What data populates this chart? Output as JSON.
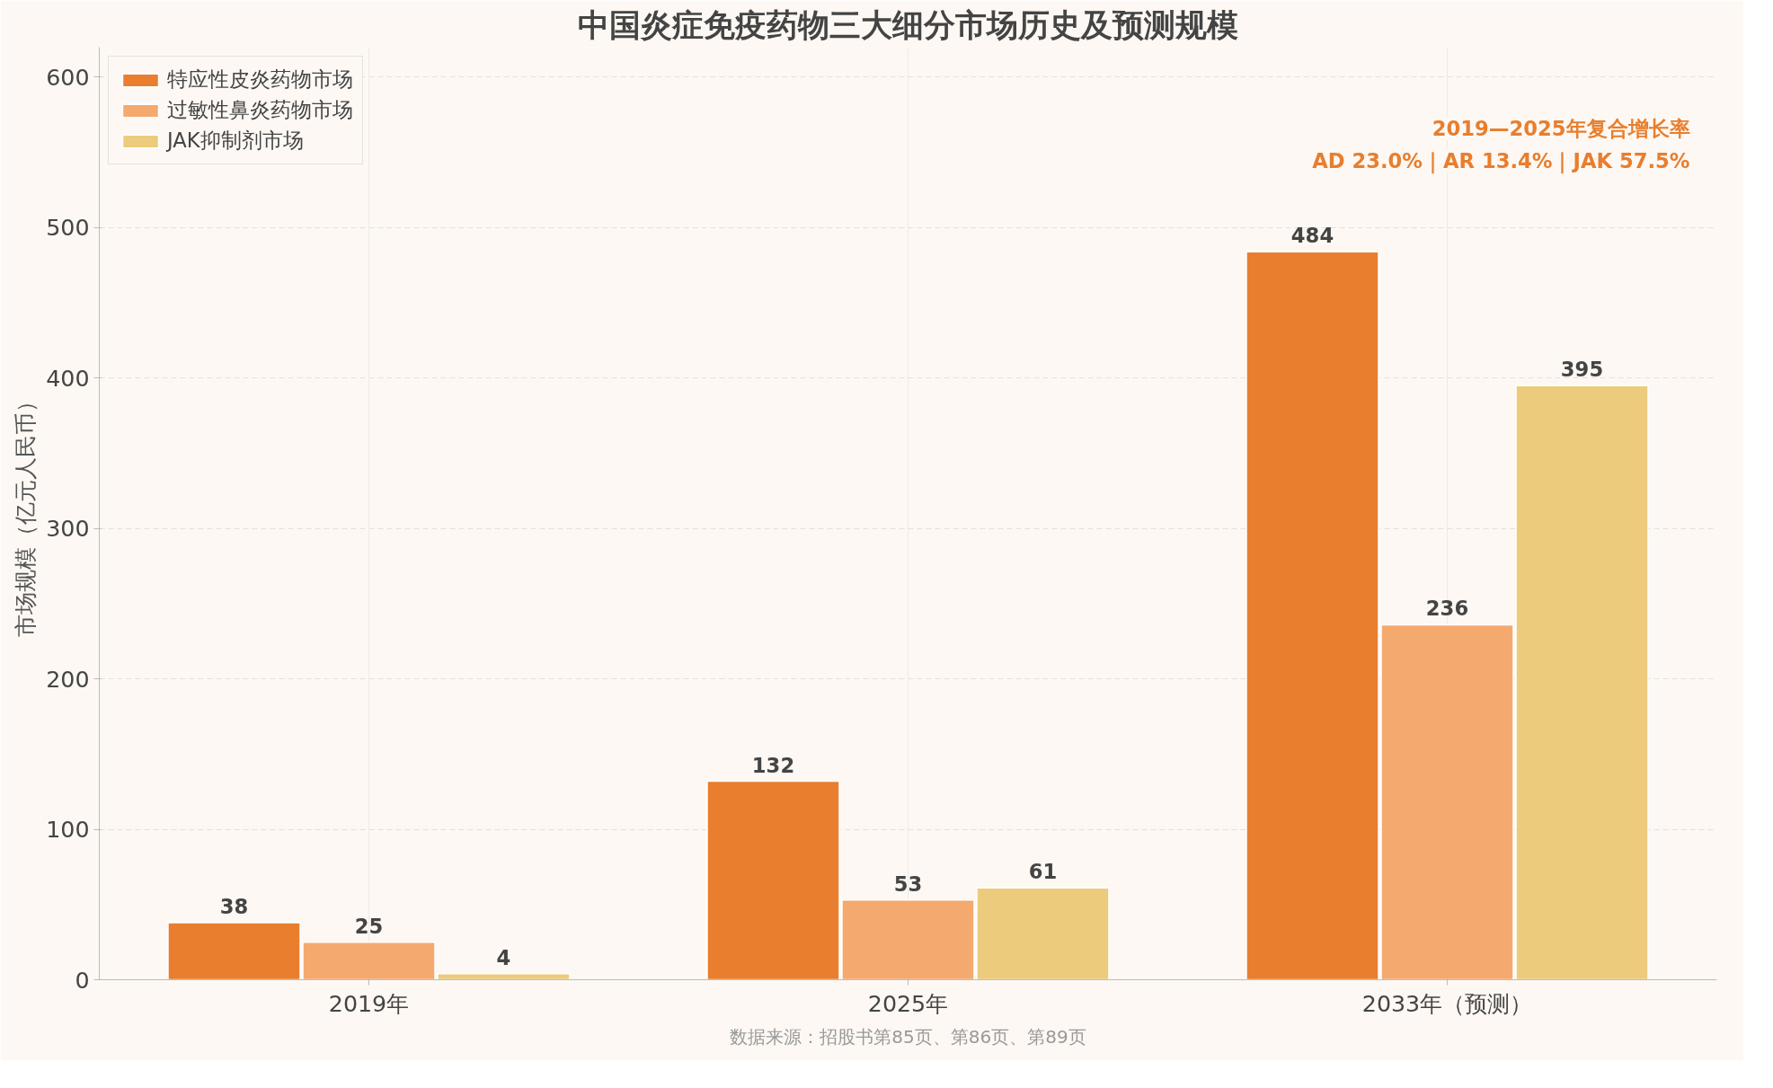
{
  "chart_data": {
    "type": "bar",
    "title": "中国炎症免疫药物三大细分市场历史及预测规模",
    "ylabel": "市场规模（亿元人民币）",
    "categories": [
      "2019年",
      "2025年",
      "2033年（预测）"
    ],
    "series": [
      {
        "name": "特应性皮炎药物市场",
        "color": "#e87e2e",
        "values": [
          38,
          132,
          484
        ]
      },
      {
        "name": "过敏性鼻炎药物市场",
        "color": "#f4a96e",
        "values": [
          25,
          53,
          236
        ]
      },
      {
        "name": "JAK抑制剂市场",
        "color": "#eccb7d",
        "values": [
          4,
          61,
          395
        ]
      }
    ],
    "ylim": [
      0,
      620
    ],
    "yticks": [
      0,
      100,
      200,
      300,
      400,
      500,
      600
    ],
    "grid": true,
    "legend": "top left",
    "data_labels": true,
    "annotations": [
      "2019—2025年复合增长率",
      "AD 23.0%｜AR 13.4%｜JAK 57.5%",
      "数据来源：招股书第85页、第86页、第89页"
    ]
  }
}
